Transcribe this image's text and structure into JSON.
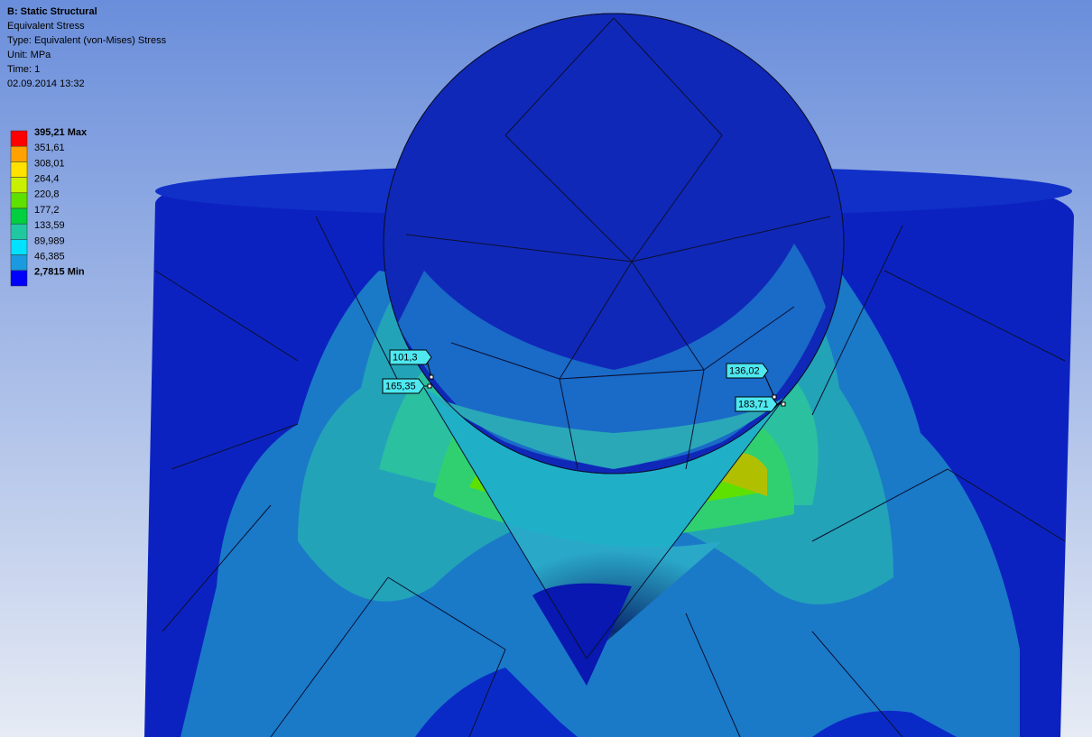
{
  "header": {
    "title": "B: Static Structural",
    "lines": [
      "Equivalent Stress",
      "Type: Equivalent (von-Mises) Stress",
      "Unit: MPa",
      "Time: 1",
      "02.09.2014 13:32"
    ]
  },
  "legend": {
    "labels": [
      "395,21 Max",
      "351,61",
      "308,01",
      "264,4",
      "220,8",
      "177,2",
      "133,59",
      "89,989",
      "46,385",
      "2,7815 Min"
    ],
    "colors": [
      "#ff0000",
      "#ffa200",
      "#ffe200",
      "#c8f000",
      "#5ee000",
      "#00d040",
      "#1fc8a0",
      "#00e2ff",
      "#1b9ae0",
      "#0000ff"
    ]
  },
  "probes": [
    {
      "label": "101,3"
    },
    {
      "label": "165,35"
    },
    {
      "label": "136,02"
    },
    {
      "label": "183,71"
    }
  ]
}
